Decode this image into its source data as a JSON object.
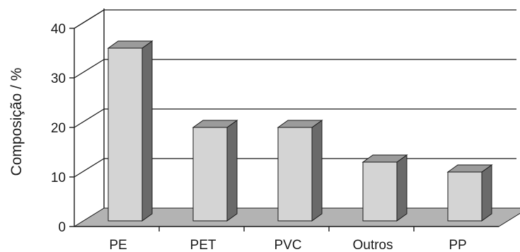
{
  "chart_data": {
    "type": "bar",
    "title": "",
    "xlabel": "",
    "ylabel": "Composição / %",
    "categories": [
      "PE",
      "PET",
      "PVC",
      "Outros",
      "PP"
    ],
    "values": [
      36,
      20,
      20,
      13,
      11
    ],
    "ylim": [
      0,
      40
    ],
    "yticks": [
      0,
      10,
      20,
      30,
      40
    ],
    "grid": true,
    "style": "3d",
    "colors": {
      "bar_front": "#d4d4d4",
      "bar_side": "#6a6a6a",
      "bar_top": "#9b9b9b",
      "floor": "#b3b3b3",
      "wall": "#ffffff",
      "stroke": "#1a1a1a"
    }
  }
}
